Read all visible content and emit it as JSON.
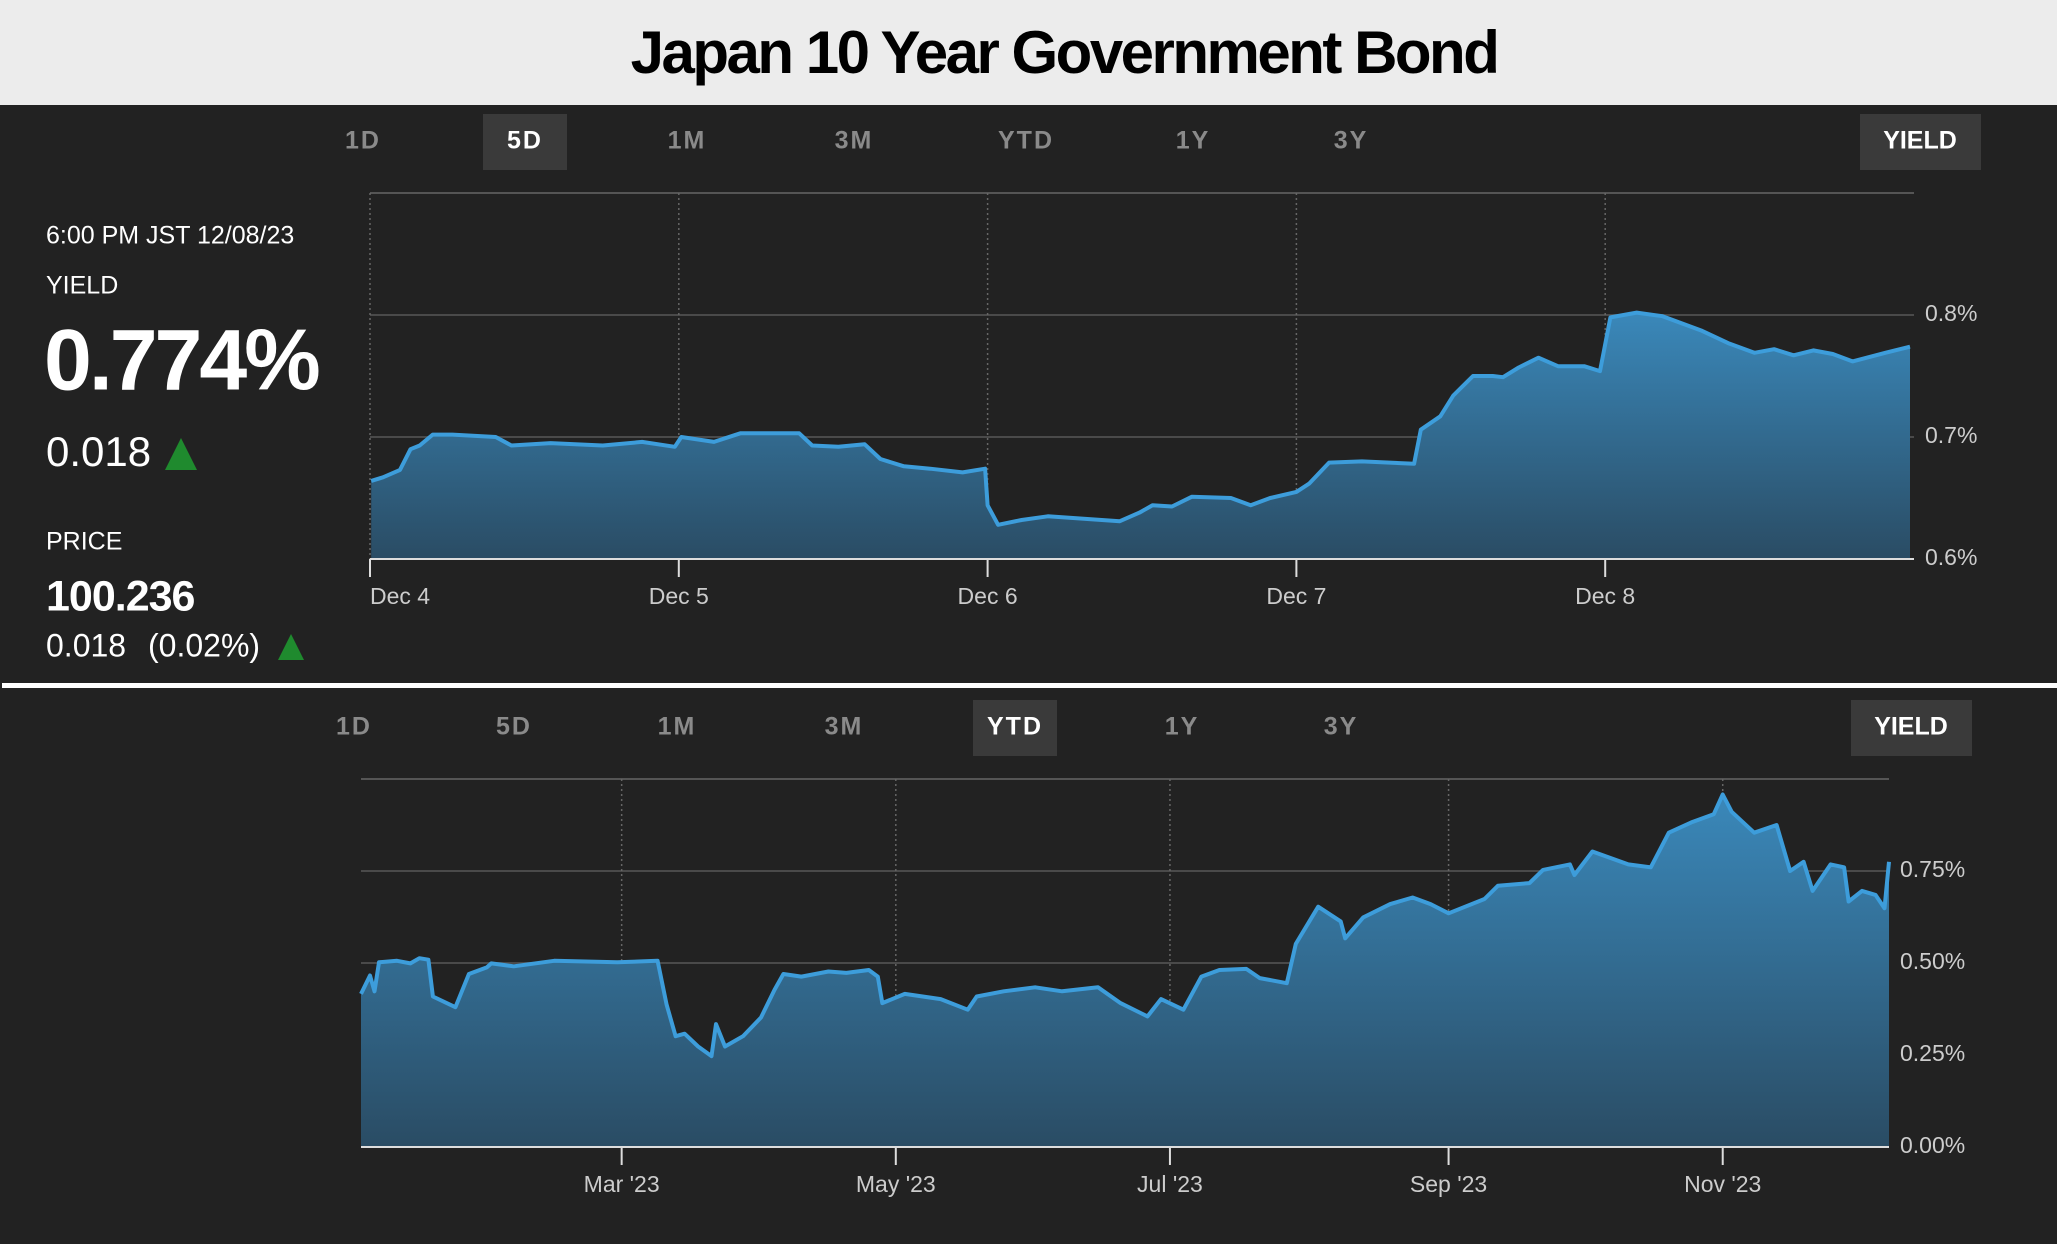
{
  "header": {
    "title": "Japan 10 Year Government Bond"
  },
  "quote": {
    "timestamp": "6:00 PM JST 12/08/23",
    "yield_label": "YIELD",
    "yield": "0.774%",
    "change": "0.018",
    "price_label": "PRICE",
    "price": "100.236",
    "price_change": "0.018",
    "price_change_pct": "(0.02%)"
  },
  "panels": [
    {
      "ranges": [
        "1D",
        "5D",
        "1M",
        "3M",
        "YTD",
        "1Y",
        "3Y"
      ],
      "active_range": "5D",
      "mode": "YIELD"
    },
    {
      "ranges": [
        "1D",
        "5D",
        "1M",
        "3M",
        "YTD",
        "1Y",
        "3Y"
      ],
      "active_range": "YTD",
      "mode": "YIELD"
    }
  ],
  "chart_data": [
    {
      "type": "area",
      "grid": true,
      "xlim": [
        0,
        5
      ],
      "ylim": [
        0.6,
        0.9
      ],
      "xticks": [
        {
          "value": 0,
          "label": "Dec 4"
        },
        {
          "value": 1,
          "label": "Dec 5"
        },
        {
          "value": 2,
          "label": "Dec 6"
        },
        {
          "value": 3,
          "label": "Dec 7"
        },
        {
          "value": 4,
          "label": "Dec 8"
        }
      ],
      "yticks": [
        {
          "value": 0.6,
          "label": "0.6%"
        },
        {
          "value": 0.7,
          "label": "0.7%"
        },
        {
          "value": 0.8,
          "label": "0.8%"
        }
      ],
      "series": [
        {
          "color": "#3d9ddb",
          "x": [
            0.004,
            0.042,
            0.097,
            0.131,
            0.161,
            0.203,
            0.267,
            0.407,
            0.458,
            0.585,
            0.754,
            0.881,
            0.987,
            1.008,
            1.114,
            1.199,
            1.39,
            1.432,
            1.517,
            1.602,
            1.653,
            1.729,
            1.814,
            1.919,
            1.992,
            2.0,
            2.034,
            2.11,
            2.195,
            2.428,
            2.492,
            2.534,
            2.597,
            2.661,
            2.788,
            2.852,
            2.915,
            3.0,
            3.042,
            3.106,
            3.212,
            3.381,
            3.403,
            3.466,
            3.508,
            3.572,
            3.636,
            3.669,
            3.72,
            3.784,
            3.847,
            3.932,
            3.983,
            4.017,
            4.102,
            4.186,
            4.314,
            4.398,
            4.483,
            4.547,
            4.61,
            4.674,
            4.737,
            4.801,
            4.907,
            4.987
          ],
          "values": [
            0.664,
            0.667,
            0.673,
            0.69,
            0.693,
            0.702,
            0.702,
            0.7,
            0.693,
            0.695,
            0.693,
            0.696,
            0.692,
            0.7,
            0.696,
            0.703,
            0.703,
            0.693,
            0.692,
            0.694,
            0.682,
            0.676,
            0.674,
            0.671,
            0.674,
            0.644,
            0.628,
            0.632,
            0.635,
            0.631,
            0.638,
            0.644,
            0.643,
            0.651,
            0.65,
            0.644,
            0.65,
            0.655,
            0.662,
            0.679,
            0.68,
            0.678,
            0.706,
            0.717,
            0.734,
            0.75,
            0.75,
            0.749,
            0.757,
            0.765,
            0.758,
            0.758,
            0.754,
            0.798,
            0.802,
            0.799,
            0.787,
            0.777,
            0.769,
            0.772,
            0.767,
            0.771,
            0.768,
            0.762,
            0.769,
            0.774
          ]
        }
      ]
    },
    {
      "type": "area",
      "grid": true,
      "xlim": [
        1,
        341
      ],
      "ylim": [
        0,
        1.0
      ],
      "xticks": [
        {
          "value": 59,
          "label": "Mar '23"
        },
        {
          "value": 120,
          "label": "May '23"
        },
        {
          "value": 181,
          "label": "Jul '23"
        },
        {
          "value": 243,
          "label": "Sep '23"
        },
        {
          "value": 304,
          "label": "Nov '23"
        }
      ],
      "yticks": [
        {
          "value": 0,
          "label": "0.00%"
        },
        {
          "value": 0.25,
          "label": "0.25%"
        },
        {
          "value": 0.5,
          "label": "0.50%"
        },
        {
          "value": 0.75,
          "label": "0.75%"
        }
      ],
      "series": [
        {
          "color": "#3d9ddb",
          "x": [
            1,
            3,
            4,
            5,
            9,
            12,
            14,
            16,
            17,
            22,
            25,
            29,
            30,
            35,
            44,
            58,
            67,
            69,
            71,
            73,
            76,
            79,
            80,
            82,
            86,
            90,
            93,
            95,
            99,
            105,
            109,
            114,
            116,
            117,
            122,
            130,
            136,
            138,
            144,
            151,
            157,
            165,
            170,
            176,
            179,
            184,
            188,
            192,
            198,
            201,
            207,
            209,
            214,
            219,
            220,
            224,
            230,
            235,
            239,
            243,
            251,
            254,
            261,
            264,
            270,
            271,
            275,
            283,
            288,
            292,
            297,
            302,
            304,
            306,
            311,
            316,
            319,
            322,
            324,
            328,
            331,
            332,
            335,
            338,
            340,
            341
          ],
          "values": [
            0.416,
            0.466,
            0.423,
            0.502,
            0.506,
            0.499,
            0.513,
            0.509,
            0.409,
            0.38,
            0.47,
            0.488,
            0.499,
            0.491,
            0.506,
            0.502,
            0.506,
            0.387,
            0.301,
            0.308,
            0.273,
            0.247,
            0.334,
            0.273,
            0.301,
            0.352,
            0.427,
            0.47,
            0.463,
            0.477,
            0.473,
            0.481,
            0.463,
            0.391,
            0.416,
            0.402,
            0.373,
            0.409,
            0.423,
            0.434,
            0.423,
            0.434,
            0.391,
            0.355,
            0.402,
            0.373,
            0.463,
            0.481,
            0.484,
            0.459,
            0.445,
            0.552,
            0.653,
            0.613,
            0.567,
            0.624,
            0.66,
            0.678,
            0.66,
            0.635,
            0.674,
            0.71,
            0.717,
            0.753,
            0.768,
            0.739,
            0.803,
            0.768,
            0.76,
            0.854,
            0.882,
            0.904,
            0.958,
            0.911,
            0.854,
            0.875,
            0.75,
            0.775,
            0.696,
            0.768,
            0.76,
            0.667,
            0.696,
            0.685,
            0.649,
            0.775
          ]
        }
      ]
    }
  ]
}
